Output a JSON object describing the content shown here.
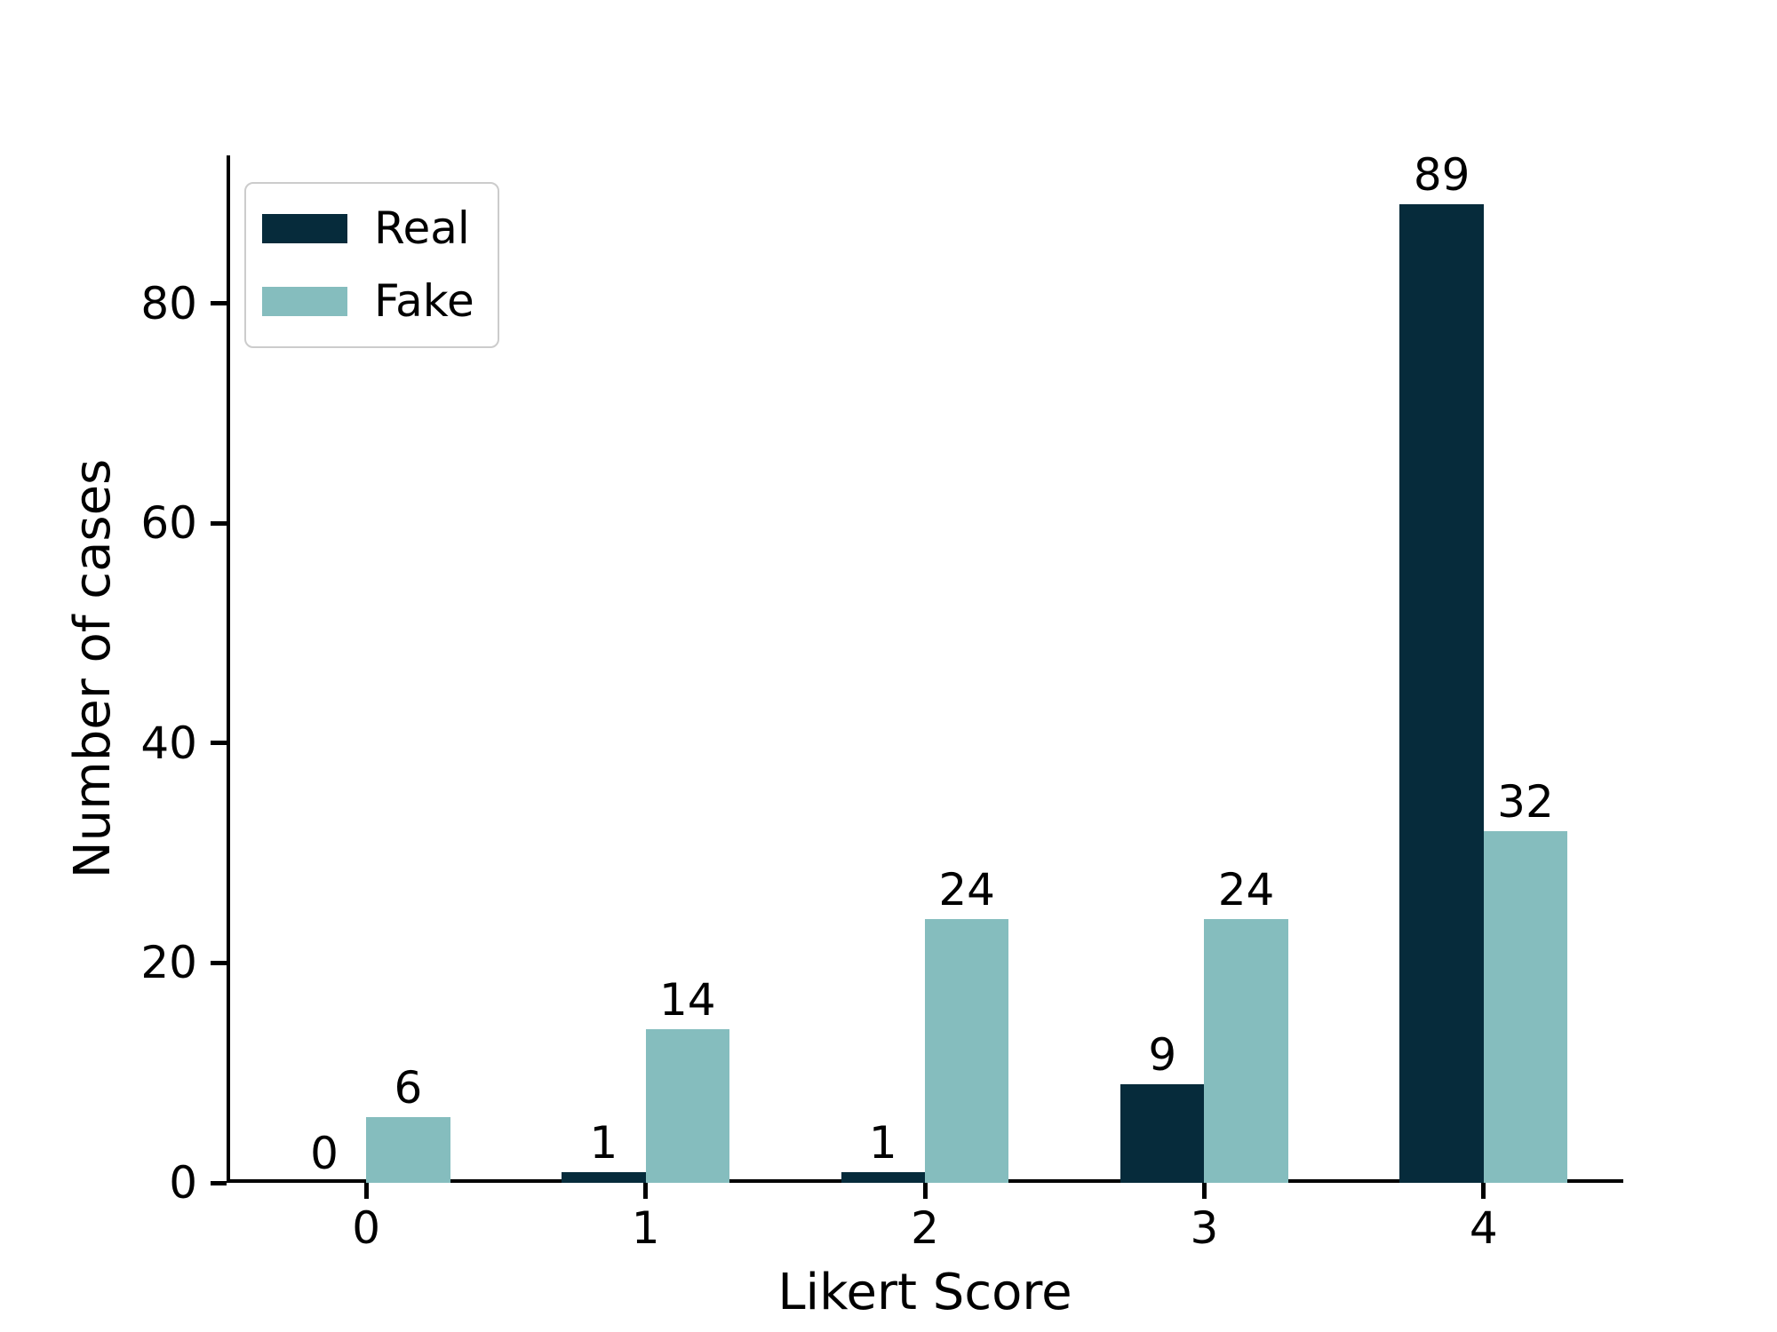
{
  "chart_data": {
    "type": "bar",
    "title": "",
    "xlabel": "Likert Score",
    "ylabel": "Number of cases",
    "categories": [
      "0",
      "1",
      "2",
      "3",
      "4"
    ],
    "series": [
      {
        "name": "Real",
        "color": "#062b3b",
        "values": [
          0,
          1,
          1,
          9,
          89
        ]
      },
      {
        "name": "Fake",
        "color": "#85bdbe",
        "values": [
          6,
          14,
          24,
          24,
          32
        ]
      }
    ],
    "bar_value_labels": [
      [
        "0",
        "1",
        "1",
        "9",
        "89"
      ],
      [
        "6",
        "14",
        "24",
        "24",
        "32"
      ]
    ],
    "yticks": [
      "0",
      "20",
      "40",
      "60",
      "80"
    ],
    "ytick_values": [
      0,
      20,
      40,
      60,
      80
    ],
    "ylim": [
      0,
      93.45
    ],
    "grid": false,
    "legend_position": "upper left",
    "axis_color": "#000000",
    "background_color": "#ffffff"
  }
}
